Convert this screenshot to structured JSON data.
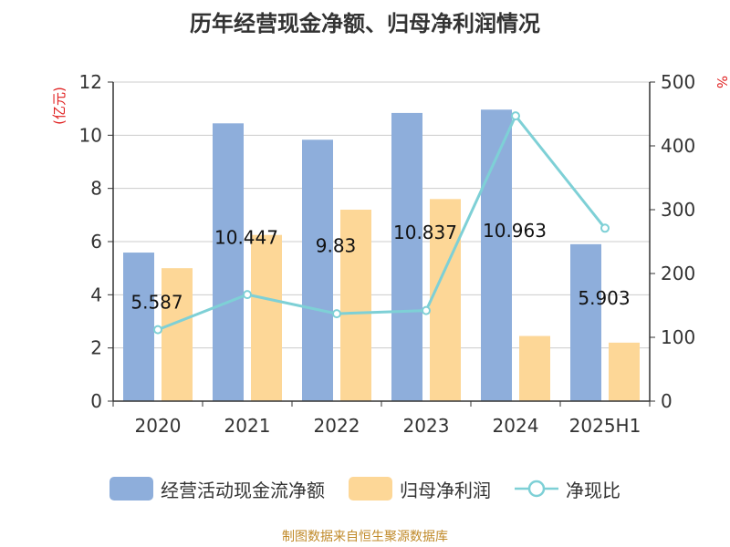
{
  "title": "历年经营现金净额、归母净利润情况",
  "source": "制图数据来自恒生聚源数据库",
  "chart_data": {
    "type": "bar",
    "categories": [
      "2020",
      "2021",
      "2022",
      "2023",
      "2024",
      "2025H1"
    ],
    "left_axis_label": "(亿元)",
    "right_axis_label": "%",
    "ylim_left": [
      0,
      12
    ],
    "ylim_right": [
      0,
      500
    ],
    "left_ticks": [
      0,
      2,
      4,
      6,
      8,
      10,
      12
    ],
    "right_ticks": [
      0,
      100,
      200,
      300,
      400,
      500
    ],
    "grid": true,
    "legend_position": "bottom",
    "series": [
      {
        "name": "经营活动现金流净额",
        "kind": "bar",
        "axis": "left",
        "color": "#8eaedb",
        "values": [
          5.587,
          10.447,
          9.83,
          10.837,
          10.963,
          5.903
        ],
        "labels": [
          "5.587",
          "10.447",
          "9.83",
          "10.837",
          "10.963",
          "5.903"
        ]
      },
      {
        "name": "归母净利润",
        "kind": "bar",
        "axis": "left",
        "color": "#fdd797",
        "values": [
          5.0,
          6.25,
          7.2,
          7.6,
          2.45,
          2.2
        ]
      },
      {
        "name": "净现比",
        "kind": "line",
        "axis": "right",
        "color": "#7ed0d6",
        "values": [
          112,
          167,
          137,
          142,
          447,
          271
        ]
      }
    ]
  }
}
